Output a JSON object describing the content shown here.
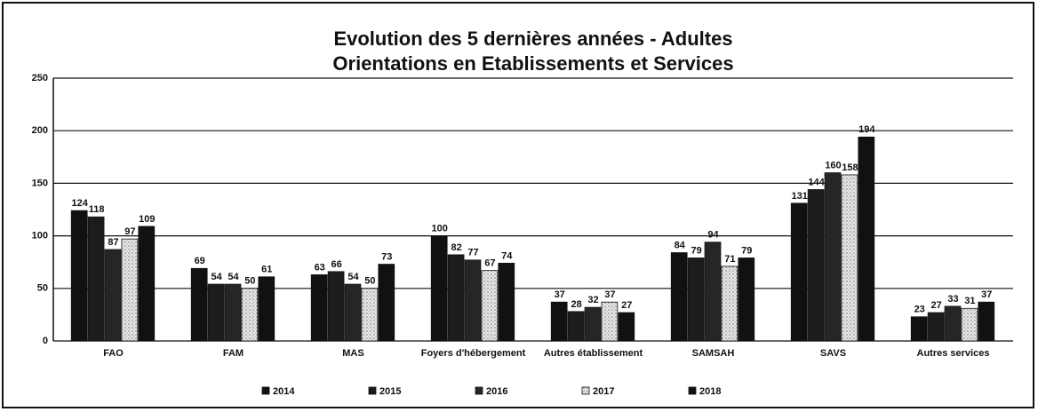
{
  "chart_data": {
    "type": "bar",
    "title": "Evolution des 5 dernières années - Adultes",
    "subtitle": "Orientations en Etablissements et Services",
    "categories": [
      "FAO",
      "FAM",
      "MAS",
      "Foyers d'hébergement",
      "Autres établissement",
      "SAMSAH",
      "SAVS",
      "Autres services"
    ],
    "series": [
      {
        "name": "2014",
        "color": "#111111",
        "values": [
          124,
          69,
          63,
          100,
          37,
          84,
          131,
          23
        ]
      },
      {
        "name": "2015",
        "color": "#1c1c1c",
        "values": [
          118,
          54,
          66,
          82,
          28,
          79,
          144,
          27
        ]
      },
      {
        "name": "2016",
        "color": "#262626",
        "values": [
          87,
          54,
          54,
          77,
          32,
          94,
          160,
          33
        ]
      },
      {
        "name": "2017",
        "color": "#e4e4e4",
        "values": [
          97,
          50,
          50,
          67,
          37,
          71,
          158,
          31
        ]
      },
      {
        "name": "2018",
        "color": "#111111",
        "values": [
          109,
          61,
          73,
          74,
          27,
          79,
          194,
          37
        ]
      }
    ],
    "ylim": [
      0,
      250
    ],
    "yticks": [
      0,
      50,
      100,
      150,
      200,
      250
    ],
    "grid": true,
    "legend": "bottom"
  }
}
